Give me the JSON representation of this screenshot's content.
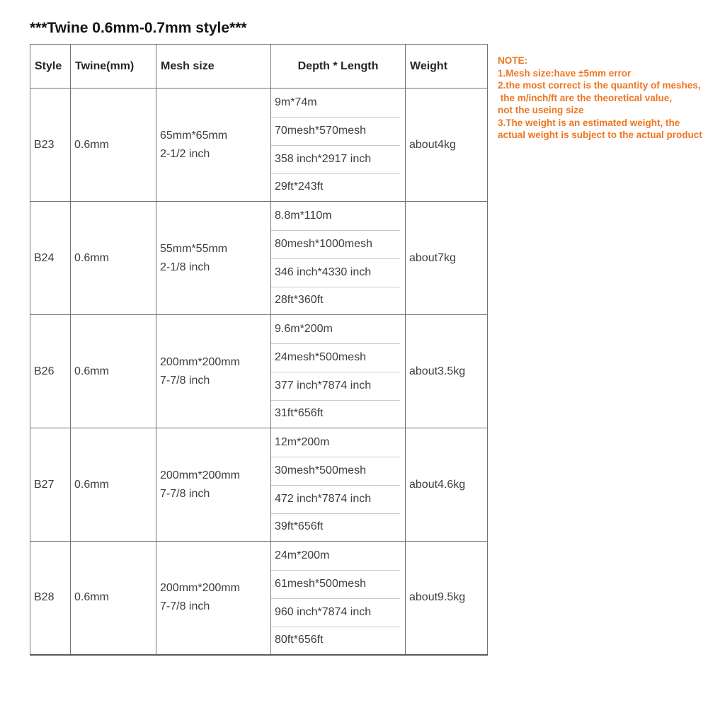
{
  "page": {
    "title": "***Twine 0.6mm-0.7mm style***"
  },
  "table": {
    "headers": [
      "Style",
      "Twine(mm)",
      "Mesh size",
      "Depth * Length",
      "Weight"
    ],
    "rows": [
      {
        "style": "B23",
        "twine": "0.6mm",
        "mesh_line1": "65mm*65mm",
        "mesh_line2": "2-1/2 inch",
        "depth_length": [
          "9m*74m",
          "70mesh*570mesh",
          "358 inch*2917 inch",
          "29ft*243ft"
        ],
        "weight": "about4kg"
      },
      {
        "style": "B24",
        "twine": "0.6mm",
        "mesh_line1": "55mm*55mm",
        "mesh_line2": "2-1/8 inch",
        "depth_length": [
          "8.8m*110m",
          "80mesh*1000mesh",
          "346 inch*4330 inch",
          "28ft*360ft"
        ],
        "weight": "about7kg"
      },
      {
        "style": "B26",
        "twine": "0.6mm",
        "mesh_line1": "200mm*200mm",
        "mesh_line2": "7-7/8 inch",
        "depth_length": [
          "9.6m*200m",
          "24mesh*500mesh",
          "377 inch*7874 inch",
          "31ft*656ft"
        ],
        "weight": "about3.5kg"
      },
      {
        "style": "B27",
        "twine": "0.6mm",
        "mesh_line1": "200mm*200mm",
        "mesh_line2": "7-7/8 inch",
        "depth_length": [
          "12m*200m",
          "30mesh*500mesh",
          "472 inch*7874 inch",
          "39ft*656ft"
        ],
        "weight": "about4.6kg"
      },
      {
        "style": "B28",
        "twine": "0.6mm",
        "mesh_line1": "200mm*200mm",
        "mesh_line2": "7-7/8 inch",
        "depth_length": [
          "24m*200m",
          "61mesh*500mesh",
          "960 inch*7874 inch",
          "80ft*656ft"
        ],
        "weight": "about9.5kg"
      }
    ]
  },
  "note": {
    "lines": [
      "NOTE:",
      "1.Mesh size:have ±5mm error",
      "2.the most correct is the quantity of meshes,",
      " the m/inch/ft are the theoretical value,",
      "not the useing size",
      "3.The weight is an estimated weight, the",
      "actual weight is subject to the actual product"
    ],
    "color": "#ee7621"
  },
  "colors": {
    "grid_border": "#737373",
    "sub_divider": "#c9c9c9",
    "body_text": "#3d3d3d",
    "header_text": "#262626",
    "note_orange": "#ee7621",
    "background": "#ffffff"
  }
}
